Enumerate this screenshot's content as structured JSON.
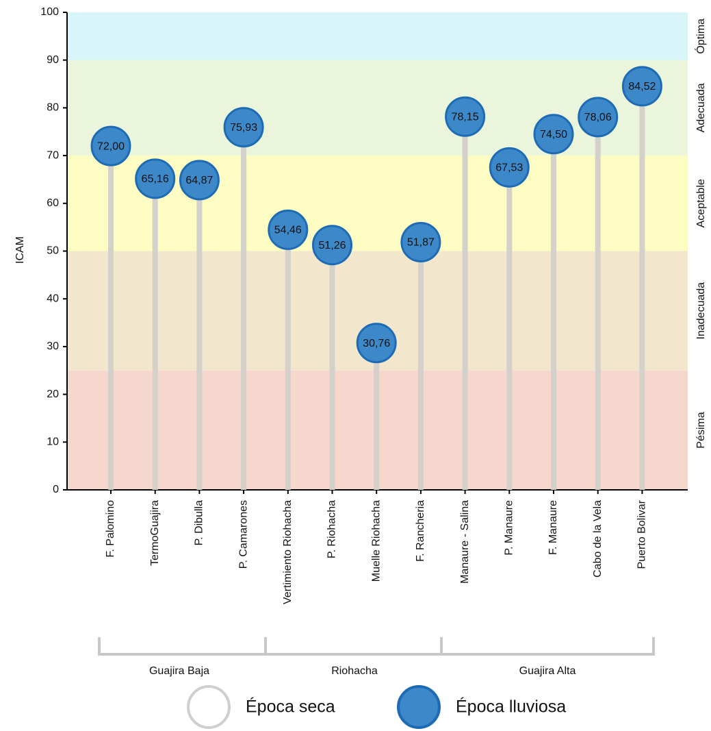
{
  "chart_data": {
    "type": "lollipop",
    "y_label": "ICAM",
    "categories": [
      "F. Palomino",
      "TermoGuajira",
      "P. Dibulla",
      "P. Camarones",
      "Vertimiento Riohacha",
      "P. Riohacha",
      "Muelle Riohacha",
      "F. Rancheria",
      "Manaure - Salina",
      "P. Manaure",
      "F. Manaure",
      "Cabo de la Vela",
      "Puerto Bolivar"
    ],
    "values": [
      72.0,
      65.16,
      64.87,
      75.93,
      54.46,
      51.26,
      30.76,
      51.87,
      78.15,
      67.53,
      74.5,
      78.06,
      84.52
    ],
    "value_labels": [
      "72,00",
      "65,16",
      "64,87",
      "75,93",
      "54,46",
      "51,26",
      "30,76",
      "51,87",
      "78,15",
      "67,53",
      "74,50",
      "78,06",
      "84,52"
    ],
    "color": "#3d88c9",
    "stem_color": "#d4d0ca",
    "ylim": [
      0,
      100
    ],
    "yticks": [
      0,
      10,
      20,
      30,
      40,
      50,
      60,
      70,
      80,
      90,
      100
    ],
    "bands": [
      {
        "label": "Óptima",
        "range": [
          90,
          100
        ],
        "color": "#d8f6fa"
      },
      {
        "label": "Adecuada",
        "range": [
          70,
          90
        ],
        "color": "#ebf5dc"
      },
      {
        "label": "Aceptable",
        "range": [
          50,
          70
        ],
        "color": "#fdfcc2"
      },
      {
        "label": "Inadecuada",
        "range": [
          25,
          50
        ],
        "color": "#f2e7cd"
      },
      {
        "label": "Pésima",
        "range": [
          0,
          25
        ],
        "color": "#f5d7cd"
      }
    ],
    "groups": [
      "Guajira Baja",
      "Riohacha",
      "Guajira Alta"
    ],
    "legend": [
      {
        "name": "Época seca",
        "color": "#ffffff"
      },
      {
        "name": "Época lluviosa",
        "color": "#3d88c9"
      }
    ]
  }
}
